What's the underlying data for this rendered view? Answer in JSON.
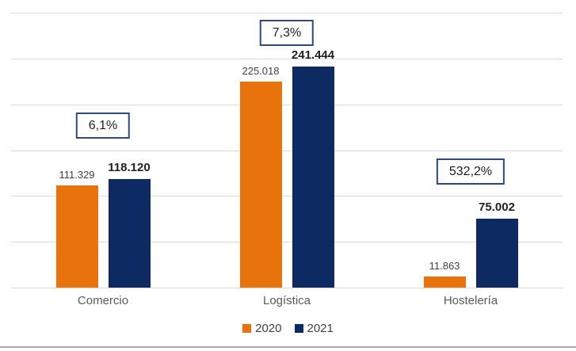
{
  "chart_data": {
    "type": "bar",
    "categories": [
      "Comercio",
      "Logística",
      "Hostelería"
    ],
    "series": [
      {
        "name": "2020",
        "color": "#E8720C",
        "values": [
          111329,
          225018,
          11863
        ],
        "labels": [
          "111.329",
          "225.018",
          "11.863"
        ]
      },
      {
        "name": "2021",
        "color": "#0E2A63",
        "values": [
          118120,
          241444,
          75002
        ],
        "labels": [
          "118.120",
          "241.444",
          "75.002"
        ]
      }
    ],
    "annotations": [
      {
        "category": "Comercio",
        "label": "6,1%"
      },
      {
        "category": "Logística",
        "label": "7,3%"
      },
      {
        "category": "Hostelería",
        "label": "532,2%"
      }
    ],
    "title": "",
    "xlabel": "",
    "ylabel": "",
    "ylim": [
      0,
      300000
    ],
    "grid_step": 50000,
    "grid": true,
    "y_axis_labels_visible": false,
    "legend_position": "bottom"
  },
  "colors": {
    "bar_2020": "#E8720C",
    "bar_2021": "#0E2A63",
    "gridline": "#D9D9D9",
    "annotation_border": "#2E4A7C",
    "annotation_text": "#1F1F1F",
    "category_label": "#595959",
    "data_label_2020": "#3F3F3F",
    "data_label_2021": "#1F1F1F",
    "legend_text": "#404040",
    "bottom_border": "#A9A9AD",
    "background": "#FFFFFF"
  }
}
